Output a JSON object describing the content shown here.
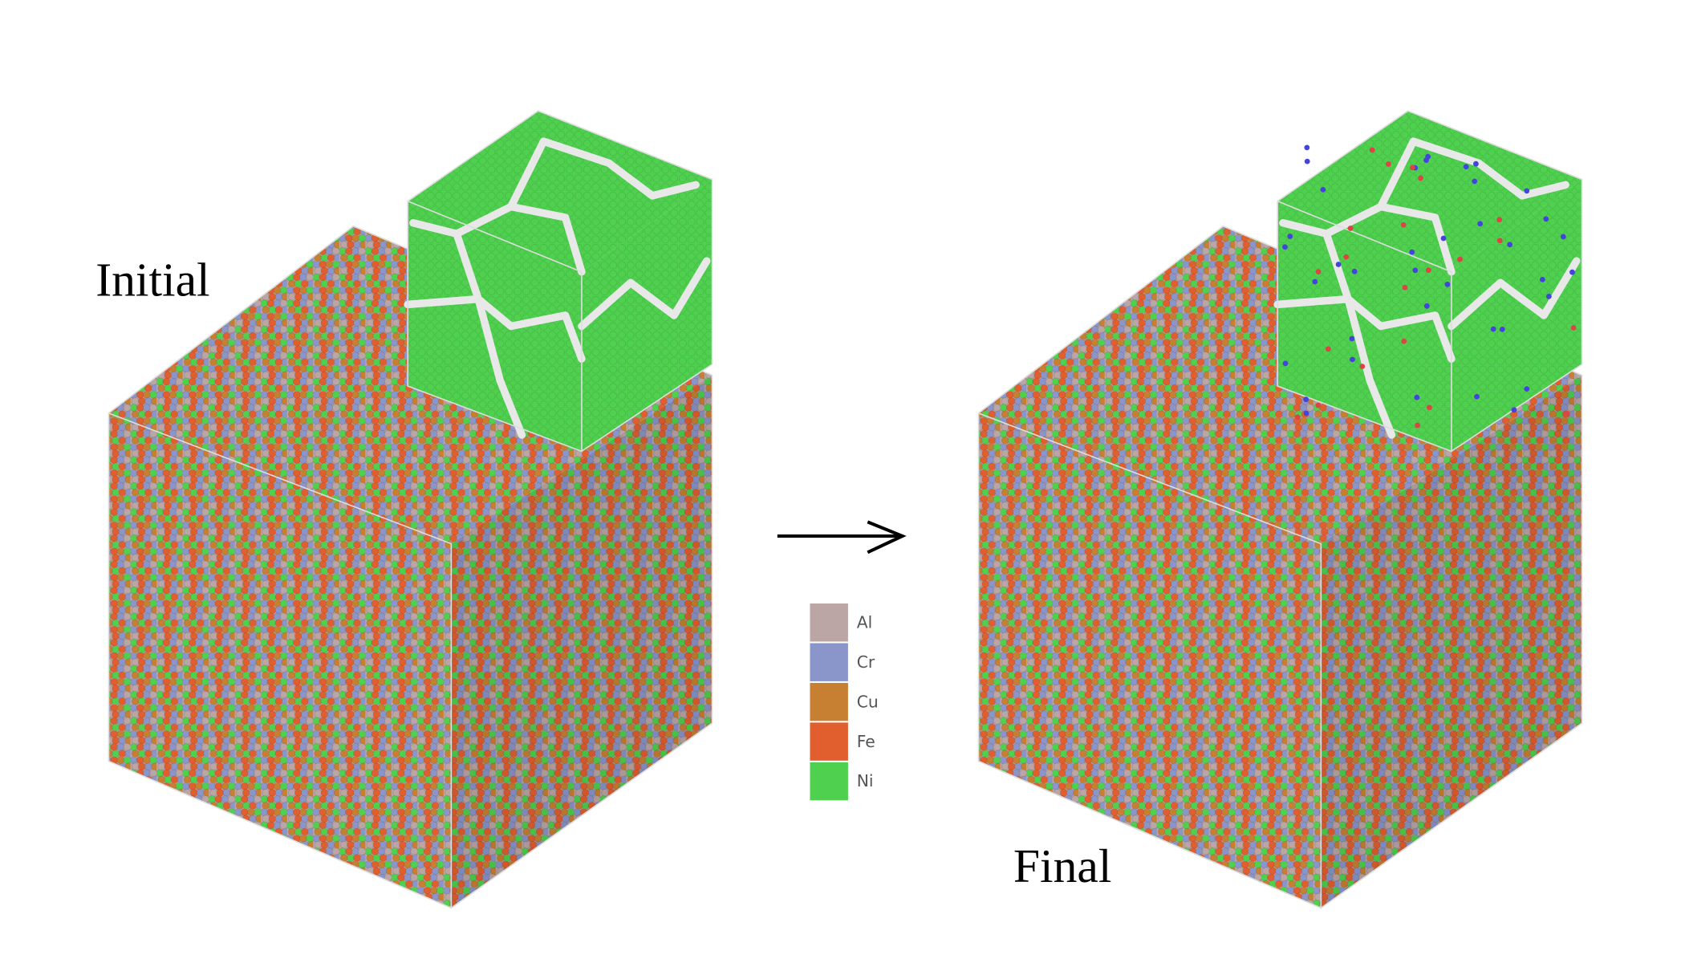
{
  "panels": {
    "initial": {
      "label": "Initial"
    },
    "final": {
      "label": "Final"
    }
  },
  "legend": {
    "items": [
      {
        "label": "Al",
        "color": "#bca5a5"
      },
      {
        "label": "Cr",
        "color": "#8a95c9"
      },
      {
        "label": "Cu",
        "color": "#c77f31"
      },
      {
        "label": "Fe",
        "color": "#e15f2f"
      },
      {
        "label": "Ni",
        "color": "#4fd04f"
      }
    ]
  }
}
